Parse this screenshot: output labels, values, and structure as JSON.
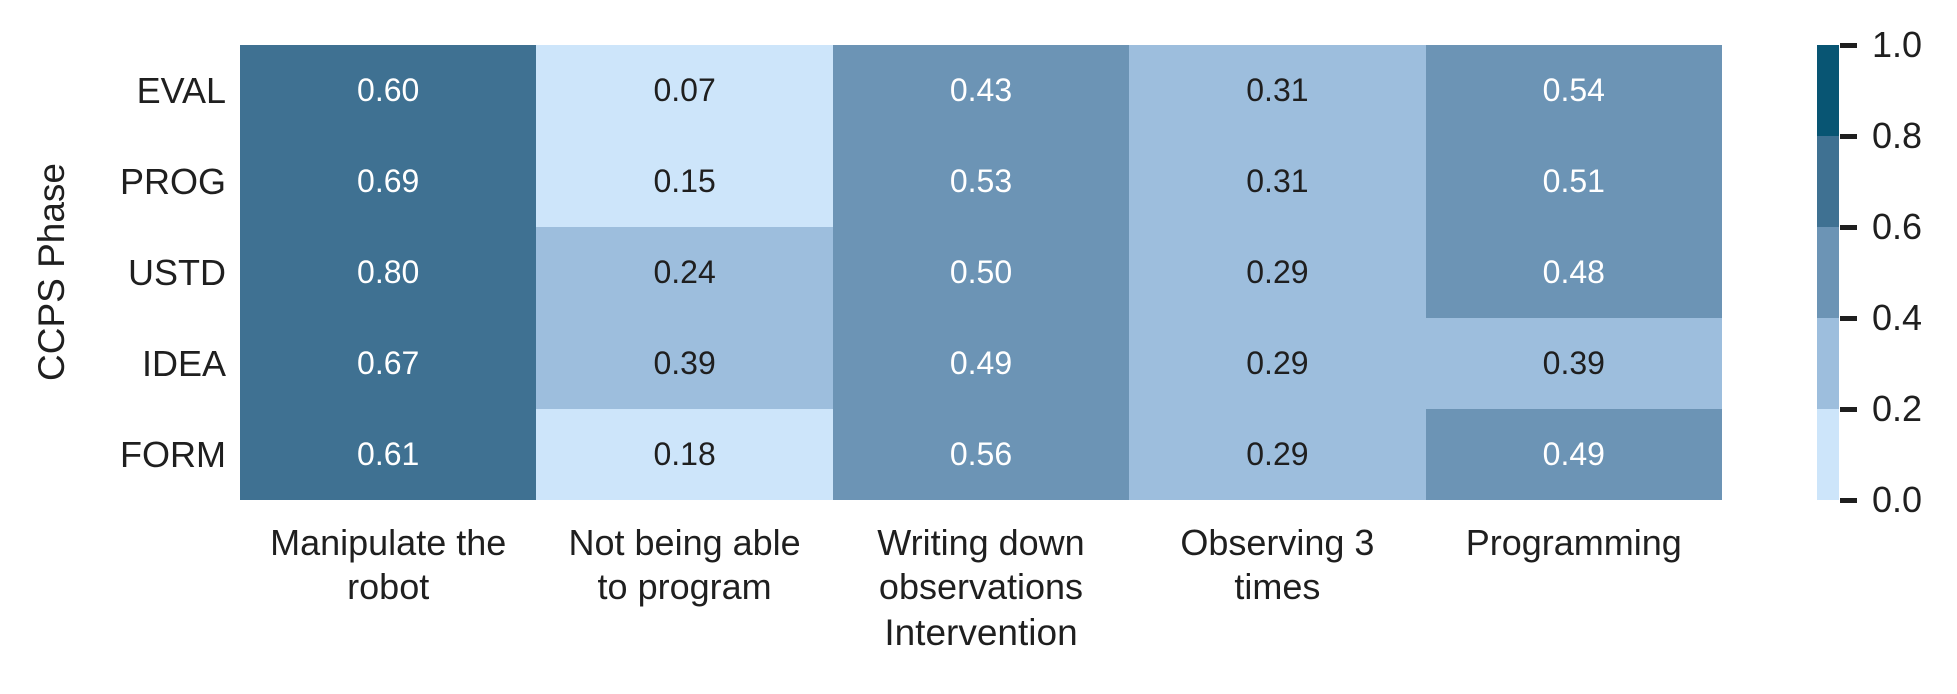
{
  "accent_text_color": "#1f1f1f",
  "chart_data": {
    "type": "heatmap",
    "title": "",
    "xlabel": "Intervention",
    "ylabel": "CCPS Phase",
    "rows": [
      "EVAL",
      "PROG",
      "USTD",
      "IDEA",
      "FORM"
    ],
    "columns": [
      {
        "label": "Manipulate the robot",
        "lines": [
          "Manipulate the",
          "robot"
        ]
      },
      {
        "label": "Not being able to program",
        "lines": [
          "Not being able",
          "to program"
        ]
      },
      {
        "label": "Writing down observations",
        "lines": [
          "Writing down",
          "observations"
        ]
      },
      {
        "label": "Observing 3 times",
        "lines": [
          "Observing 3",
          "times"
        ]
      },
      {
        "label": "Programming",
        "lines": [
          "Programming"
        ]
      }
    ],
    "values": [
      [
        0.6,
        0.07,
        0.43,
        0.31,
        0.54
      ],
      [
        0.69,
        0.15,
        0.53,
        0.31,
        0.51
      ],
      [
        0.8,
        0.24,
        0.5,
        0.29,
        0.48
      ],
      [
        0.67,
        0.39,
        0.49,
        0.29,
        0.39
      ],
      [
        0.61,
        0.18,
        0.56,
        0.29,
        0.49
      ]
    ],
    "value_decimals": 2,
    "vmin": 0.0,
    "vmax": 1.0,
    "grid": false,
    "legend_position": "right-colorbar",
    "colorbar": {
      "tick_labels": [
        "1.0",
        "0.8",
        "0.6",
        "0.4",
        "0.2",
        "0.0"
      ],
      "band_colors_low_to_high": [
        "#cde5fa",
        "#9dbedd",
        "#6c94b5",
        "#3f7192",
        "#085573"
      ],
      "band_thresholds": [
        0.2,
        0.4,
        0.6,
        0.8
      ]
    },
    "cell_text_color_light": "#ffffff",
    "cell_text_color_dark": "#1f1f1f"
  }
}
